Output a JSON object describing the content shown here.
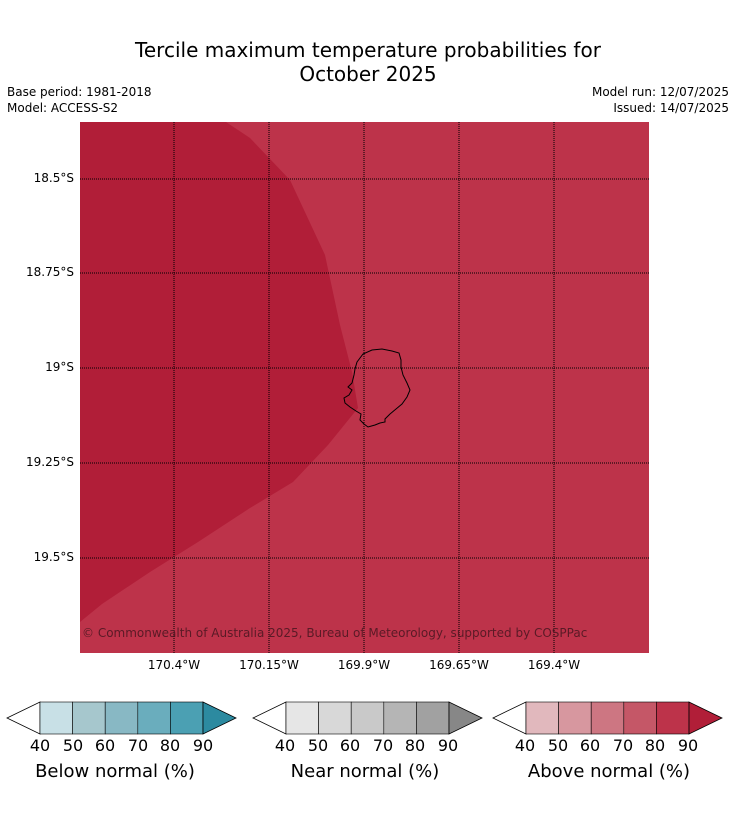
{
  "title": {
    "line1": "Tercile maximum temperature probabilities for",
    "line2": "October 2025"
  },
  "meta": {
    "base_period": "Base period: 1981-2018",
    "model": "Model: ACCESS-S2",
    "model_run": "Model run: 12/07/2025",
    "issued": "Issued: 14/07/2025"
  },
  "map": {
    "latitudes": [
      "18.5°S",
      "18.75°S",
      "19°S",
      "19.25°S",
      "19.5°S"
    ],
    "longitudes": [
      "170.4°W",
      "170.15°W",
      "169.9°W",
      "169.65°W",
      "169.4°W"
    ],
    "copyright": "© Commonwealth of Australia 2025, Bureau of Meteorology, supported by COSPPac",
    "regions": [
      {
        "category": "Above normal",
        "class": "80-90",
        "color": "#bd334a"
      },
      {
        "category": "Above normal",
        "class": ">90",
        "color": "#b11e38"
      }
    ],
    "island_outline": "#000000"
  },
  "legends": [
    {
      "title": "Below normal (%)",
      "ticks": [
        "40",
        "50",
        "60",
        "70",
        "80",
        "90"
      ],
      "colors": [
        "#ffffff",
        "#c8e0e6",
        "#a6c7cd",
        "#88b8c4",
        "#6aadbd",
        "#4ba0b3",
        "#2c8aa0"
      ]
    },
    {
      "title": "Near normal (%)",
      "ticks": [
        "40",
        "50",
        "60",
        "70",
        "80",
        "90"
      ],
      "colors": [
        "#ffffff",
        "#e6e6e6",
        "#d8d8d8",
        "#c9c9c9",
        "#b5b5b5",
        "#a1a1a1",
        "#878787"
      ]
    },
    {
      "title": "Above normal (%)",
      "ticks": [
        "40",
        "50",
        "60",
        "70",
        "80",
        "90"
      ],
      "colors": [
        "#ffffff",
        "#e1b8bd",
        "#d7979f",
        "#cd7682",
        "#c55767",
        "#bd334a",
        "#b11e38"
      ]
    }
  ]
}
